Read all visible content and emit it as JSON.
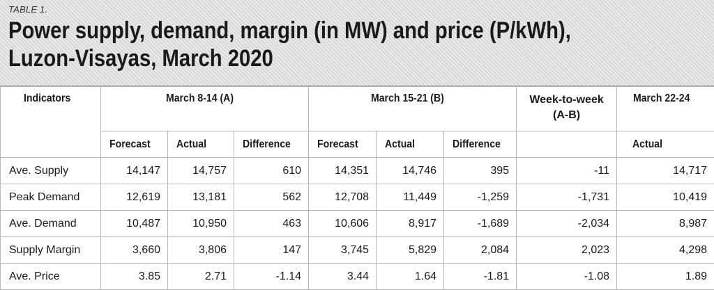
{
  "header": {
    "table_label": "TABLE 1.",
    "title_line1": "Power supply, demand, margin (in MW) and price (P/kWh),",
    "title_line2": "Luzon-Visayas, March 2020"
  },
  "columns": {
    "indicators": "Indicators",
    "group_a": "March 8-14 (A)",
    "group_b": "March 15-21 (B)",
    "week_line1": "Week-to-week",
    "week_line2": "(A-B)",
    "group_c": "March 22-24",
    "forecast": "Forecast",
    "actual": "Actual",
    "difference": "Difference"
  },
  "rows": [
    {
      "label": "Ave. Supply",
      "cells": [
        "14,147",
        "14,757",
        "610",
        "14,351",
        "14,746",
        "395",
        "-11",
        "14,717"
      ]
    },
    {
      "label": "Peak Demand",
      "cells": [
        "12,619",
        "13,181",
        "562",
        "12,708",
        "11,449",
        "-1,259",
        "-1,731",
        "10,419"
      ]
    },
    {
      "label": "Ave. Demand",
      "cells": [
        "10,487",
        "10,950",
        "463",
        "10,606",
        "8,917",
        "-1,689",
        "-2,034",
        "8,987"
      ]
    },
    {
      "label": "Supply Margin",
      "cells": [
        "3,660",
        "3,806",
        "147",
        "3,745",
        "5,829",
        "2,084",
        "2,023",
        "4,298"
      ]
    },
    {
      "label": "Ave. Price",
      "cells": [
        "3.85",
        "2.71",
        "-1.14",
        "3.44",
        "1.64",
        "-1.81",
        "-1.08",
        "1.89"
      ]
    }
  ]
}
